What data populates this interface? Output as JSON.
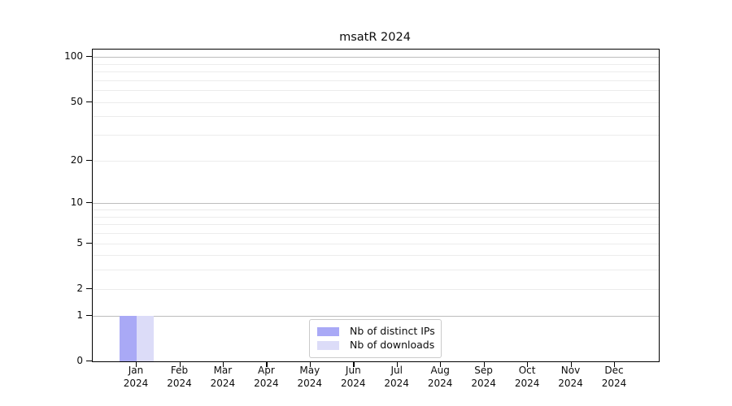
{
  "figure": {
    "title": "msatR 2024"
  },
  "legend": {
    "items": [
      {
        "label": "Nb of distinct IPs",
        "color": "#a9a9f6"
      },
      {
        "label": "Nb of downloads",
        "color": "#dcdcf8"
      }
    ]
  },
  "chart_data": {
    "type": "bar",
    "title": "msatR 2024",
    "categories": [
      "Jan",
      "Feb",
      "Mar",
      "Apr",
      "May",
      "Jun",
      "Jul",
      "Aug",
      "Sep",
      "Oct",
      "Nov",
      "Dec"
    ],
    "year": "2024",
    "series": [
      {
        "name": "Nb of distinct IPs",
        "color": "#a9a9f6",
        "values": [
          1,
          0,
          0,
          0,
          0,
          0,
          0,
          0,
          0,
          0,
          0,
          0
        ]
      },
      {
        "name": "Nb of downloads",
        "color": "#dcdcf8",
        "values": [
          1,
          0,
          0,
          0,
          0,
          0,
          0,
          0,
          0,
          0,
          0,
          0
        ]
      }
    ],
    "xlabel": "",
    "ylabel": "",
    "yscale": "log1p",
    "ylim": [
      0,
      112
    ],
    "y_ticks": [
      0,
      1,
      2,
      5,
      10,
      20,
      50,
      100
    ],
    "y_major_gridlines": [
      1,
      10,
      100
    ],
    "y_minor_gridlines": [
      2,
      3,
      4,
      5,
      6,
      7,
      8,
      9,
      20,
      30,
      40,
      50,
      60,
      70,
      80,
      90
    ],
    "grid": true,
    "legend_position": "bottom-center"
  },
  "colors": {
    "background": "#ffffff",
    "axis": "#000000",
    "major_grid": "#bdbdbd",
    "minor_grid": "#ececec",
    "legend_border": "#cbcbcb"
  }
}
